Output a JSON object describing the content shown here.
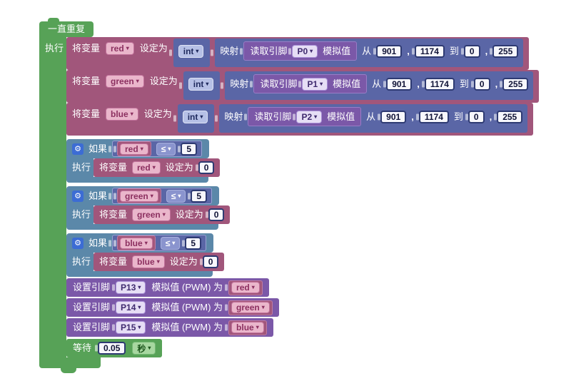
{
  "icons": {
    "dropdown_arrow": "▾",
    "gear": "⚙"
  },
  "colors": {
    "loop_green": "#57a257",
    "variable_rose": "#a1567b",
    "math_slate": "#5a66a6",
    "pin_purple": "#7b58a8",
    "logic_steel": "#5b88a9",
    "gear_blue": "#3c6cd4",
    "number_bg": "#f7f7fc",
    "number_border": "#2e3a72"
  },
  "loop": {
    "header": "一直重复",
    "do_label": "执行"
  },
  "set_var": {
    "labels": {
      "prefix": "将变量",
      "suffix": "设定为",
      "cast": "int",
      "map": "映射",
      "read_prefix": "读取引脚",
      "read_suffix": "模拟值",
      "from": "从",
      "comma": ",",
      "to": "到"
    },
    "rows": [
      {
        "var": "red",
        "pin": "P0",
        "from_low": "901",
        "from_high": "1174",
        "to_low": "0",
        "to_high": "255"
      },
      {
        "var": "green",
        "pin": "P1",
        "from_low": "901",
        "from_high": "1174",
        "to_low": "0",
        "to_high": "255"
      },
      {
        "var": "blue",
        "pin": "P2",
        "from_low": "901",
        "from_high": "1174",
        "to_low": "0",
        "to_high": "255"
      }
    ]
  },
  "if_blocks": {
    "labels": {
      "if": "如果",
      "do": "执行",
      "op": "≤",
      "threshold": "5",
      "set_prefix": "将变量",
      "set_suffix": "设定为",
      "set_value": "0"
    },
    "rows": [
      {
        "var": "red"
      },
      {
        "var": "green"
      },
      {
        "var": "blue"
      }
    ]
  },
  "set_pin": {
    "labels": {
      "prefix": "设置引脚",
      "mid": "模拟值 (PWM) 为"
    },
    "rows": [
      {
        "pin": "P13",
        "var": "red"
      },
      {
        "pin": "P14",
        "var": "green"
      },
      {
        "pin": "P15",
        "var": "blue"
      }
    ]
  },
  "wait": {
    "label": "等待",
    "value": "0.05",
    "unit": "秒"
  }
}
